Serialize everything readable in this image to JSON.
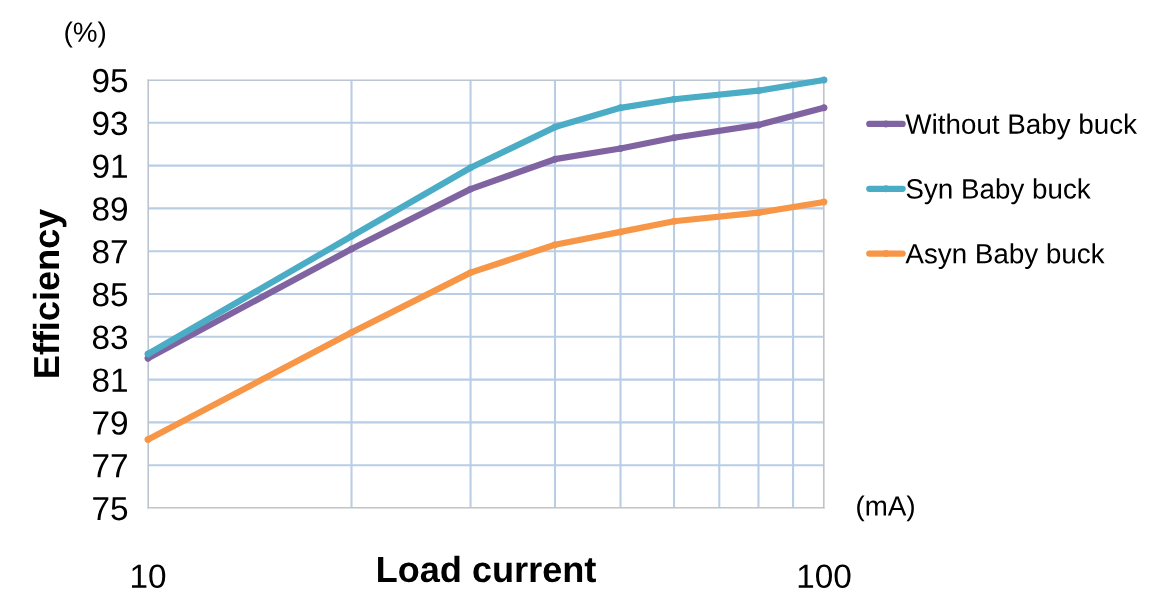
{
  "chart_data": {
    "type": "line",
    "xlabel": "Load current",
    "ylabel": "Efficiency",
    "log": "x",
    "x": [
      10,
      20,
      30,
      40,
      50,
      60,
      80,
      100
    ],
    "series": [
      {
        "name": "Without Baby buck",
        "color": "#8064a2",
        "values": [
          82.0,
          87.1,
          89.9,
          91.3,
          91.8,
          92.3,
          92.9,
          93.7
        ]
      },
      {
        "name": "Syn Baby buck",
        "color": "#4bacc6",
        "values": [
          82.2,
          87.7,
          90.9,
          92.8,
          93.7,
          94.1,
          94.5,
          95.0
        ]
      },
      {
        "name": "Asyn Baby buck",
        "color": "#f79646",
        "values": [
          78.2,
          83.2,
          86.0,
          87.3,
          87.9,
          88.4,
          88.8,
          89.3
        ]
      }
    ],
    "xlim": [
      10,
      100
    ],
    "ylim": [
      75,
      95
    ],
    "xticks": [
      10,
      {
        "value": 20,
        "label": null
      },
      {
        "value": 30,
        "label": null
      },
      {
        "value": 40,
        "label": null
      },
      {
        "value": 50,
        "label": null
      },
      {
        "value": 60,
        "label": null
      },
      {
        "value": 70,
        "label": null
      },
      {
        "value": 80,
        "label": null
      },
      {
        "value": 90,
        "label": null
      },
      100
    ],
    "yticks": [
      75,
      77,
      79,
      81,
      83,
      85,
      87,
      89,
      91,
      93,
      95
    ],
    "grid": true,
    "legend": "right",
    "marker": "circle",
    "line_style": "solid",
    "annotations": [
      "(%)",
      "(mA)"
    ]
  }
}
